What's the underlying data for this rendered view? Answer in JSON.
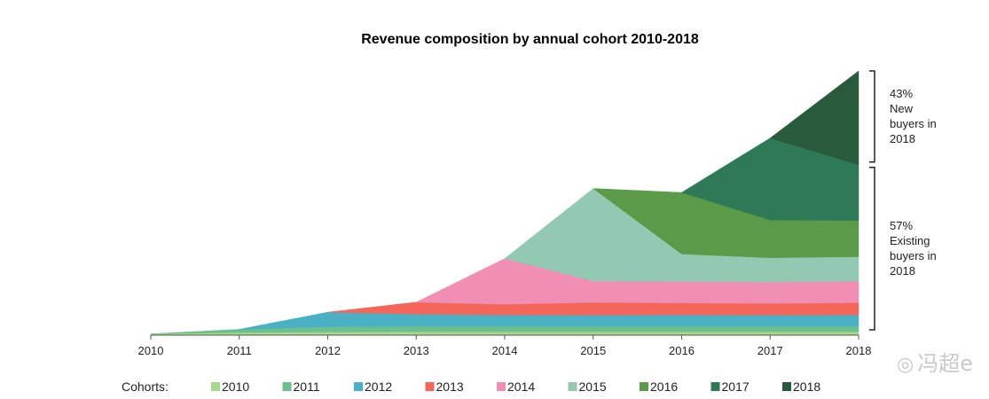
{
  "chart_data": {
    "type": "area",
    "title": "Revenue composition by annual cohort 2010-2018",
    "x": [
      "2010",
      "2011",
      "2012",
      "2013",
      "2014",
      "2015",
      "2016",
      "2017",
      "2018"
    ],
    "legend_title": "Cohorts:",
    "legend_position": "bottom",
    "stacked": true,
    "grid": false,
    "ylim": [
      0,
      100
    ],
    "series": [
      {
        "name": "2010",
        "color": "#a6d88b",
        "values": [
          0.5,
          1.0,
          1.2,
          1.3,
          1.3,
          1.3,
          1.3,
          1.3,
          1.3
        ]
      },
      {
        "name": "2011",
        "color": "#6cc08f",
        "values": [
          0,
          1.2,
          2.0,
          2.1,
          2.1,
          2.1,
          2.1,
          2.1,
          2.1
        ]
      },
      {
        "name": "2012",
        "color": "#4ab0c4",
        "values": [
          0,
          0,
          5.5,
          4.6,
          4.3,
          4.2,
          4.3,
          4.2,
          4.3
        ]
      },
      {
        "name": "2013",
        "color": "#f5665a",
        "values": [
          0,
          0,
          0,
          4.5,
          4.0,
          4.8,
          4.5,
          4.4,
          4.6
        ]
      },
      {
        "name": "2014",
        "color": "#f08fb3",
        "values": [
          0,
          0,
          0,
          0,
          17.3,
          8.1,
          8.1,
          8.1,
          8.1
        ]
      },
      {
        "name": "2015",
        "color": "#93c9b2",
        "values": [
          0,
          0,
          0,
          0,
          0,
          35.0,
          10.4,
          9.2,
          9.3
        ]
      },
      {
        "name": "2016",
        "color": "#5a9a48",
        "values": [
          0,
          0,
          0,
          0,
          0,
          0,
          23.3,
          14.3,
          13.7
        ]
      },
      {
        "name": "2017",
        "color": "#2e7a57",
        "values": [
          0,
          0,
          0,
          0,
          0,
          0,
          0,
          31.0,
          21.1
        ]
      },
      {
        "name": "2018",
        "color": "#2a5a3c",
        "values": [
          0,
          0,
          0,
          0,
          0,
          0,
          0,
          0,
          35.5
        ]
      }
    ],
    "annotations": [
      {
        "label": "43% New buyers in 2018",
        "lines": [
          "43%",
          "New",
          "buyers in",
          "2018"
        ]
      },
      {
        "label": "57% Existing buyers in 2018",
        "lines": [
          "57%",
          "Existing",
          "buyers in",
          "2018"
        ]
      }
    ]
  },
  "watermark": {
    "text": "冯超e",
    "icon": "weibo-icon"
  }
}
